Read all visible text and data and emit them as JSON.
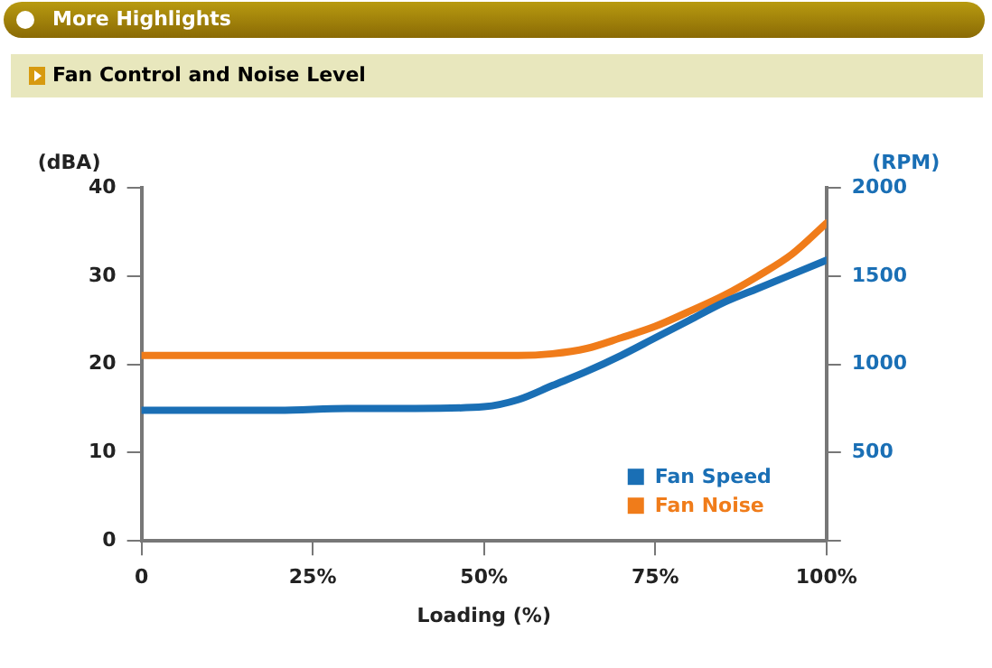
{
  "chart_data": {
    "type": "line",
    "title": "More Highlights",
    "subtitle": "Fan Control and Noise Level",
    "xlabel": "Loading (%)",
    "ylabel": "(dBA)",
    "y2label": "(RPM)",
    "x": [
      0,
      10,
      20,
      30,
      40,
      50,
      55,
      60,
      65,
      70,
      75,
      80,
      85,
      90,
      95,
      100
    ],
    "series": [
      {
        "name": "Fan Speed",
        "color": "#1a6fb5",
        "axis": "y2",
        "values": [
          740,
          740,
          740,
          750,
          750,
          760,
          800,
          880,
          960,
          1050,
          1150,
          1250,
          1350,
          1430,
          1510,
          1590
        ]
      },
      {
        "name": "Fan Noise",
        "color": "#f07c1a",
        "values": [
          21,
          21,
          21,
          21,
          21,
          21,
          21,
          21.2,
          21.8,
          23,
          24.3,
          26,
          27.8,
          30,
          32.5,
          36
        ]
      }
    ],
    "xlim": [
      0,
      100
    ],
    "xticks": [
      0,
      {
        "value": 25,
        "label": "25%"
      },
      {
        "value": 50,
        "label": "50%"
      },
      {
        "value": 75,
        "label": "75%"
      },
      {
        "value": 100,
        "label": "100%"
      }
    ],
    "ylim": [
      0,
      40
    ],
    "yticks": [
      0,
      10,
      20,
      30,
      40
    ],
    "y2lim": [
      0,
      2000
    ],
    "y2ticks": [
      {
        "value": 0,
        "label": null
      },
      500,
      1000,
      1500,
      2000
    ],
    "grid": false,
    "legend": "bottom right",
    "marker": "none",
    "line_style": "solid"
  }
}
